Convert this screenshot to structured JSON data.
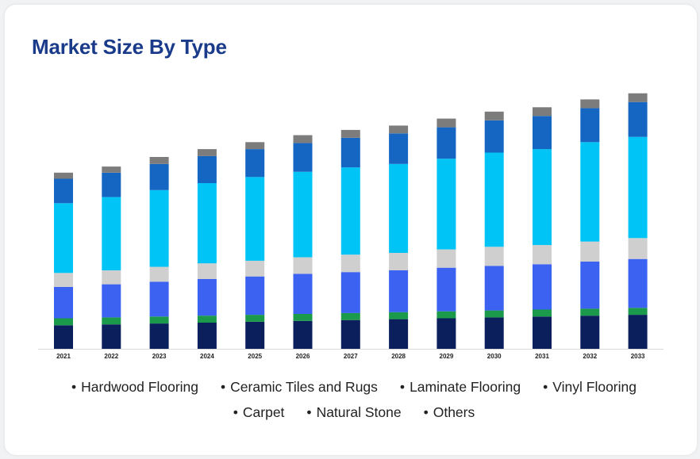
{
  "title": "Market Size By Type",
  "chart_data": {
    "type": "bar",
    "stacked": true,
    "categories": [
      "2021",
      "2022",
      "2023",
      "2024",
      "2025",
      "2026",
      "2027",
      "2028",
      "2029",
      "2030",
      "2031",
      "2032",
      "2033"
    ],
    "series": [
      {
        "name": "Hardwood Flooring",
        "color": "#0a1f5c",
        "values": [
          13.5,
          14,
          14.5,
          15,
          15.5,
          16,
          16.5,
          17,
          17.5,
          18,
          18.5,
          19,
          19.5
        ]
      },
      {
        "name": "Ceramic Tiles and Rugs",
        "color": "#1a9a4a",
        "values": [
          4,
          4,
          4,
          4,
          4,
          4,
          4,
          4,
          4,
          4,
          4,
          4,
          4
        ]
      },
      {
        "name": "Laminate Flooring",
        "color": "#3b62f0",
        "values": [
          18,
          19,
          20,
          21,
          22,
          23,
          23.5,
          24,
          25,
          25.5,
          26,
          27,
          28
        ]
      },
      {
        "name": "Vinyl Flooring",
        "color": "#cfcfcf",
        "values": [
          8,
          8,
          8.5,
          9,
          9,
          9.5,
          10,
          10,
          10.5,
          11,
          11,
          11.5,
          12
        ]
      },
      {
        "name": "Carpet",
        "color": "#00c4f5",
        "values": [
          40,
          42,
          44,
          46,
          48,
          49,
          50,
          51,
          52,
          54,
          55,
          57,
          58
        ]
      },
      {
        "name": "Natural Stone",
        "color": "#1566c2",
        "values": [
          14,
          14,
          15,
          15.5,
          16,
          16.5,
          17,
          17.5,
          18,
          18.5,
          19,
          19.5,
          20
        ]
      },
      {
        "name": "Others",
        "color": "#7c7c7c",
        "values": [
          3.5,
          3.5,
          4,
          4,
          4,
          4.5,
          4.5,
          4.5,
          5,
          5,
          5,
          5,
          5
        ]
      }
    ],
    "legend_position": "bottom",
    "grid": false,
    "ylim": [
      0,
      150
    ]
  }
}
